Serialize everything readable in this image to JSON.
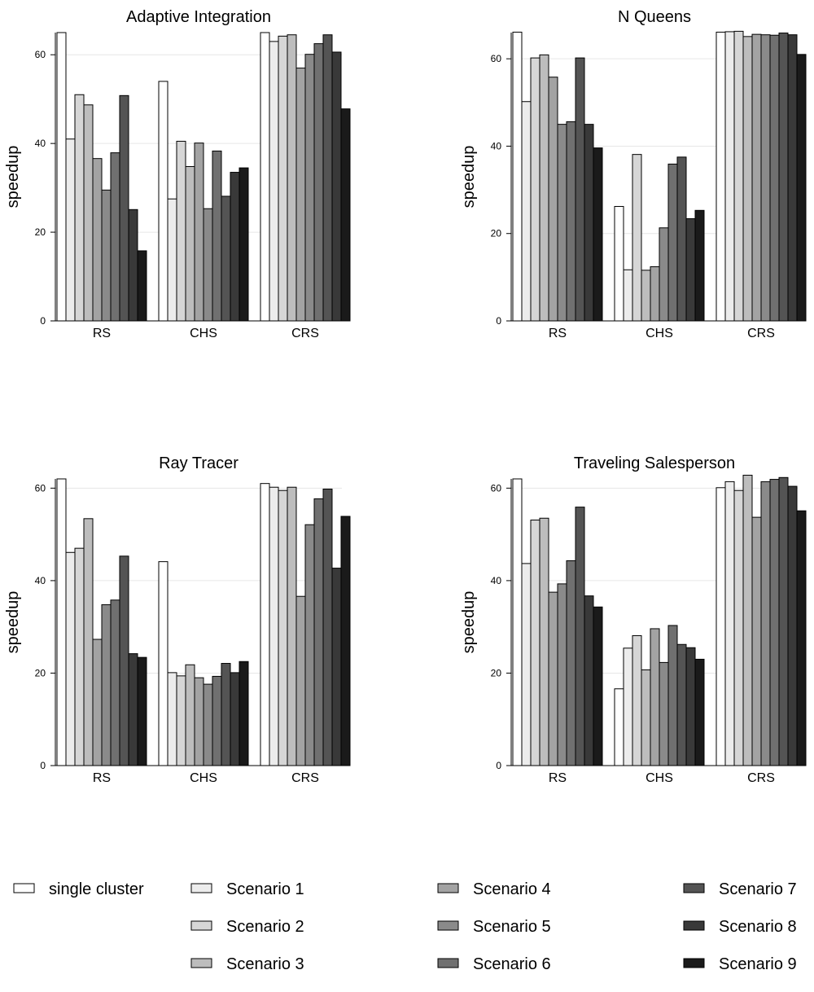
{
  "chart_data": [
    {
      "type": "bar",
      "title": "Adaptive Integration",
      "ylabel": "speedup",
      "xlabel": "",
      "categories": [
        "RS",
        "CHS",
        "CRS"
      ],
      "yticks": [
        0,
        20,
        40,
        60
      ],
      "ylim": [
        0,
        65
      ],
      "series": [
        {
          "name": "single cluster",
          "values": [
            65,
            54,
            65
          ]
        },
        {
          "name": "Scenario 1",
          "values": [
            41,
            27.5,
            63
          ]
        },
        {
          "name": "Scenario 2",
          "values": [
            51,
            40.5,
            64.2
          ]
        },
        {
          "name": "Scenario 3",
          "values": [
            48.7,
            34.8,
            64.5
          ]
        },
        {
          "name": "Scenario 4",
          "values": [
            36.6,
            40.1,
            57
          ]
        },
        {
          "name": "Scenario 5",
          "values": [
            29.5,
            25.3,
            60.1
          ]
        },
        {
          "name": "Scenario 6",
          "values": [
            37.9,
            38.3,
            62.5
          ]
        },
        {
          "name": "Scenario 7",
          "values": [
            50.8,
            28.1,
            64.5
          ]
        },
        {
          "name": "Scenario 8",
          "values": [
            25.1,
            33.5,
            60.6
          ]
        },
        {
          "name": "Scenario 9",
          "values": [
            15.8,
            34.5,
            47.8
          ]
        }
      ]
    },
    {
      "type": "bar",
      "title": "N Queens",
      "ylabel": "speedup",
      "xlabel": "",
      "categories": [
        "RS",
        "CHS",
        "CRS"
      ],
      "yticks": [
        0,
        20,
        40,
        60
      ],
      "ylim": [
        0,
        66
      ],
      "series": [
        {
          "name": "single cluster",
          "values": [
            66.1,
            26.2,
            66.1
          ]
        },
        {
          "name": "Scenario 1",
          "values": [
            50.2,
            11.7,
            66.2
          ]
        },
        {
          "name": "Scenario 2",
          "values": [
            60.2,
            38.1,
            66.3
          ]
        },
        {
          "name": "Scenario 3",
          "values": [
            60.9,
            11.6,
            65.1
          ]
        },
        {
          "name": "Scenario 4",
          "values": [
            55.8,
            12.4,
            65.6
          ]
        },
        {
          "name": "Scenario 5",
          "values": [
            45,
            21.3,
            65.5
          ]
        },
        {
          "name": "Scenario 6",
          "values": [
            45.6,
            35.9,
            65.4
          ]
        },
        {
          "name": "Scenario 7",
          "values": [
            60.2,
            37.5,
            65.9
          ]
        },
        {
          "name": "Scenario 8",
          "values": [
            45,
            23.4,
            65.5
          ]
        },
        {
          "name": "Scenario 9",
          "values": [
            39.6,
            25.3,
            61
          ]
        }
      ]
    },
    {
      "type": "bar",
      "title": "Ray Tracer",
      "ylabel": "speedup",
      "xlabel": "",
      "categories": [
        "RS",
        "CHS",
        "CRS"
      ],
      "yticks": [
        0,
        20,
        40,
        60
      ],
      "ylim": [
        0,
        62
      ],
      "series": [
        {
          "name": "single cluster",
          "values": [
            62,
            44.1,
            61
          ]
        },
        {
          "name": "Scenario 1",
          "values": [
            46.1,
            20.1,
            60.2
          ]
        },
        {
          "name": "Scenario 2",
          "values": [
            47,
            19.4,
            59.5
          ]
        },
        {
          "name": "Scenario 3",
          "values": [
            53.4,
            21.8,
            60.2
          ]
        },
        {
          "name": "Scenario 4",
          "values": [
            27.3,
            19,
            36.6
          ]
        },
        {
          "name": "Scenario 5",
          "values": [
            34.8,
            17.6,
            52.1
          ]
        },
        {
          "name": "Scenario 6",
          "values": [
            35.8,
            19.3,
            57.7
          ]
        },
        {
          "name": "Scenario 7",
          "values": [
            45.3,
            22.1,
            59.8
          ]
        },
        {
          "name": "Scenario 8",
          "values": [
            24.2,
            20.1,
            42.7
          ]
        },
        {
          "name": "Scenario 9",
          "values": [
            23.4,
            22.5,
            53.9
          ]
        }
      ]
    },
    {
      "type": "bar",
      "title": "Traveling Salesperson",
      "ylabel": "speedup",
      "xlabel": "",
      "categories": [
        "RS",
        "CHS",
        "CRS"
      ],
      "yticks": [
        0,
        20,
        40,
        60
      ],
      "ylim": [
        0,
        62
      ],
      "series": [
        {
          "name": "single cluster",
          "values": [
            62,
            16.6,
            60.1
          ]
        },
        {
          "name": "Scenario 1",
          "values": [
            43.7,
            25.4,
            61.4
          ]
        },
        {
          "name": "Scenario 2",
          "values": [
            53.1,
            28.1,
            59.5
          ]
        },
        {
          "name": "Scenario 3",
          "values": [
            53.5,
            20.7,
            62.8
          ]
        },
        {
          "name": "Scenario 4",
          "values": [
            37.5,
            29.6,
            53.7
          ]
        },
        {
          "name": "Scenario 5",
          "values": [
            39.3,
            22.3,
            61.4
          ]
        },
        {
          "name": "Scenario 6",
          "values": [
            44.3,
            30.3,
            61.9
          ]
        },
        {
          "name": "Scenario 7",
          "values": [
            55.9,
            26.2,
            62.3
          ]
        },
        {
          "name": "Scenario 8",
          "values": [
            36.7,
            25.5,
            60.4
          ]
        },
        {
          "name": "Scenario 9",
          "values": [
            34.3,
            23,
            55.1
          ]
        }
      ]
    }
  ],
  "legend": {
    "placement": "bottom",
    "items": [
      {
        "label": "single cluster",
        "color": "#ffffff"
      },
      {
        "label": "Scenario 1",
        "color": "#ececec"
      },
      {
        "label": "Scenario 2",
        "color": "#d6d6d6"
      },
      {
        "label": "Scenario 3",
        "color": "#bdbdbd"
      },
      {
        "label": "Scenario 4",
        "color": "#a3a3a3"
      },
      {
        "label": "Scenario 5",
        "color": "#8a8a8a"
      },
      {
        "label": "Scenario 6",
        "color": "#707070"
      },
      {
        "label": "Scenario 7",
        "color": "#545454"
      },
      {
        "label": "Scenario 8",
        "color": "#393939"
      },
      {
        "label": "Scenario 9",
        "color": "#1a1a1a"
      }
    ]
  },
  "style": {
    "bar_stroke": "#000000",
    "gridline_color": "#e6e6e6",
    "background": "#ffffff"
  }
}
